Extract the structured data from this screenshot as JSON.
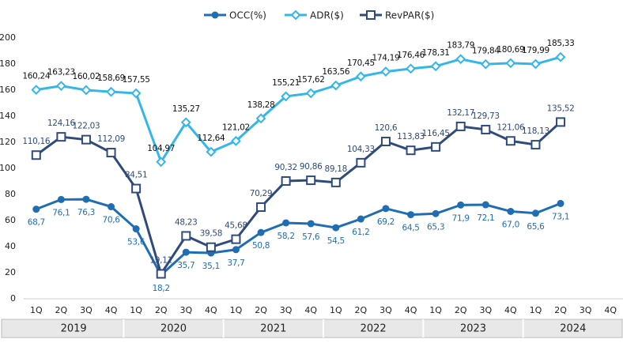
{
  "chart_data": {
    "type": "line",
    "categories": [
      "1Q",
      "2Q",
      "3Q",
      "4Q",
      "1Q",
      "2Q",
      "3Q",
      "4Q",
      "1Q",
      "2Q",
      "3Q",
      "4Q",
      "1Q",
      "2Q",
      "3Q",
      "4Q",
      "1Q",
      "2Q",
      "3Q",
      "4Q",
      "1Q",
      "2Q",
      "3Q",
      "4Q"
    ],
    "groups": [
      "2019",
      "2020",
      "2021",
      "2022",
      "2023",
      "2024"
    ],
    "series": [
      {
        "name": "OCC(%)",
        "color": "#1f6db3",
        "marker": "circle",
        "label_position": "below",
        "values": [
          68.7,
          76.1,
          76.3,
          70.6,
          53.6,
          18.2,
          35.7,
          35.1,
          37.7,
          50.8,
          58.2,
          57.6,
          54.5,
          61.2,
          69.2,
          64.5,
          65.3,
          71.9,
          72.1,
          67.0,
          65.6,
          73.1,
          null,
          null
        ],
        "value_labels": [
          "68,7",
          "76,1",
          "76,3",
          "70,6",
          "53,6",
          "18,2",
          "35,7",
          "35,1",
          "37,7",
          "50,8",
          "58,2",
          "57,6",
          "54,5",
          "61,2",
          "69,2",
          "64,5",
          "65,3",
          "71,9",
          "72,1",
          "67,0",
          "65,6",
          "73,1",
          null,
          null
        ]
      },
      {
        "name": "ADR($)",
        "color": "#35b6e9",
        "marker": "diamond",
        "label_position": "above",
        "values": [
          160.24,
          163.23,
          160.02,
          158.69,
          157.55,
          104.97,
          135.27,
          112.64,
          121.02,
          138.28,
          155.21,
          157.62,
          163.56,
          170.45,
          174.19,
          176.46,
          178.31,
          183.79,
          179.84,
          180.69,
          179.99,
          185.33,
          null,
          null
        ],
        "value_labels": [
          "160,24",
          "163,23",
          "160,02",
          "158,69",
          "157,55",
          "104,97",
          "135,27",
          "112,64",
          "121,02",
          "138,28",
          "155,21",
          "157,62",
          "163,56",
          "170,45",
          "174,19",
          "176,46",
          "178,31",
          "183,79",
          "179,84",
          "180,69",
          "179,99",
          "185,33",
          null,
          null
        ]
      },
      {
        "name": "RevPAR($)",
        "color": "#2f4b7c",
        "marker": "square",
        "label_position": "above",
        "values": [
          110.16,
          124.16,
          122.03,
          112.09,
          84.51,
          19.11,
          48.23,
          39.58,
          45.68,
          70.29,
          90.32,
          90.86,
          89.18,
          104.33,
          120.6,
          113.83,
          116.45,
          132.17,
          129.73,
          121.06,
          118.13,
          135.52,
          null,
          null
        ],
        "value_labels": [
          "110,16",
          "124,16",
          "122,03",
          "112,09",
          "84,51",
          "19,11",
          "48,23",
          "39,58",
          "45,68",
          "70,29",
          "90,32",
          "90,86",
          "89,18",
          "104,33",
          "120,6",
          "113,83",
          "116,45",
          "132,17",
          "129,73",
          "121,06",
          "118,13",
          "135,52",
          null,
          null
        ]
      }
    ],
    "ylim": [
      0,
      200
    ],
    "yticks": [
      0,
      20,
      40,
      60,
      80,
      100,
      120,
      140,
      160,
      180,
      200
    ],
    "grid": false,
    "legend": "top"
  }
}
